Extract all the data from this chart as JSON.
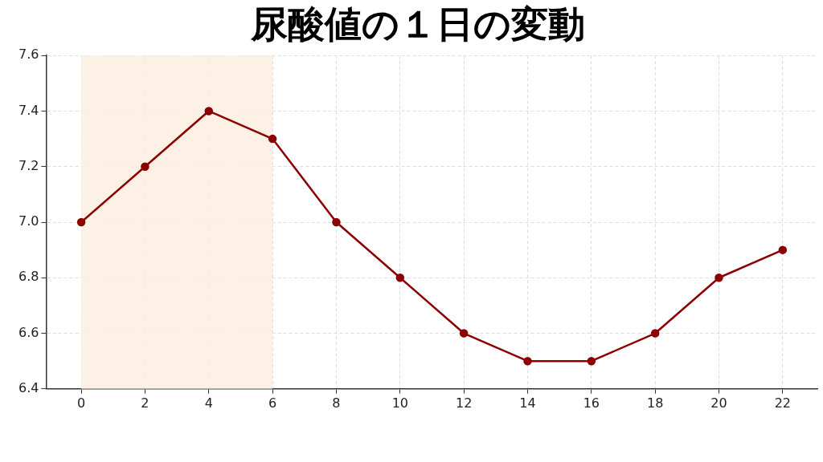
{
  "chart_data": {
    "type": "line",
    "title": "尿酸値の１日の変動",
    "x": [
      0,
      2,
      4,
      6,
      8,
      10,
      12,
      14,
      16,
      18,
      20,
      22
    ],
    "series": [
      {
        "color": "#8b0000",
        "values": [
          7.0,
          7.2,
          7.4,
          7.3,
          7.0,
          6.8,
          6.6,
          6.5,
          6.5,
          6.6,
          6.8,
          6.9
        ]
      }
    ],
    "xlim": [
      -1.1,
      23.1
    ],
    "xticks": [
      0,
      2,
      4,
      6,
      8,
      10,
      12,
      14,
      16,
      18,
      20,
      22
    ],
    "ylim": [
      6.4,
      7.6
    ],
    "yticks": [
      {
        "value": 6.4,
        "label": "6.4"
      },
      {
        "value": 6.6,
        "label": "6.6"
      },
      {
        "value": 6.8,
        "label": "6.8"
      },
      {
        "value": 7.0,
        "label": "7.0"
      },
      {
        "value": 7.2,
        "label": "7.2"
      },
      {
        "value": 7.4,
        "label": "7.4"
      },
      {
        "value": 7.6,
        "label": "7.6"
      }
    ],
    "bands": [
      {
        "axis": "x",
        "from": 0,
        "to": 6,
        "color": "#fdeee1"
      }
    ],
    "grid": true,
    "legend": false,
    "marker": "circle",
    "line_style": "solid"
  }
}
